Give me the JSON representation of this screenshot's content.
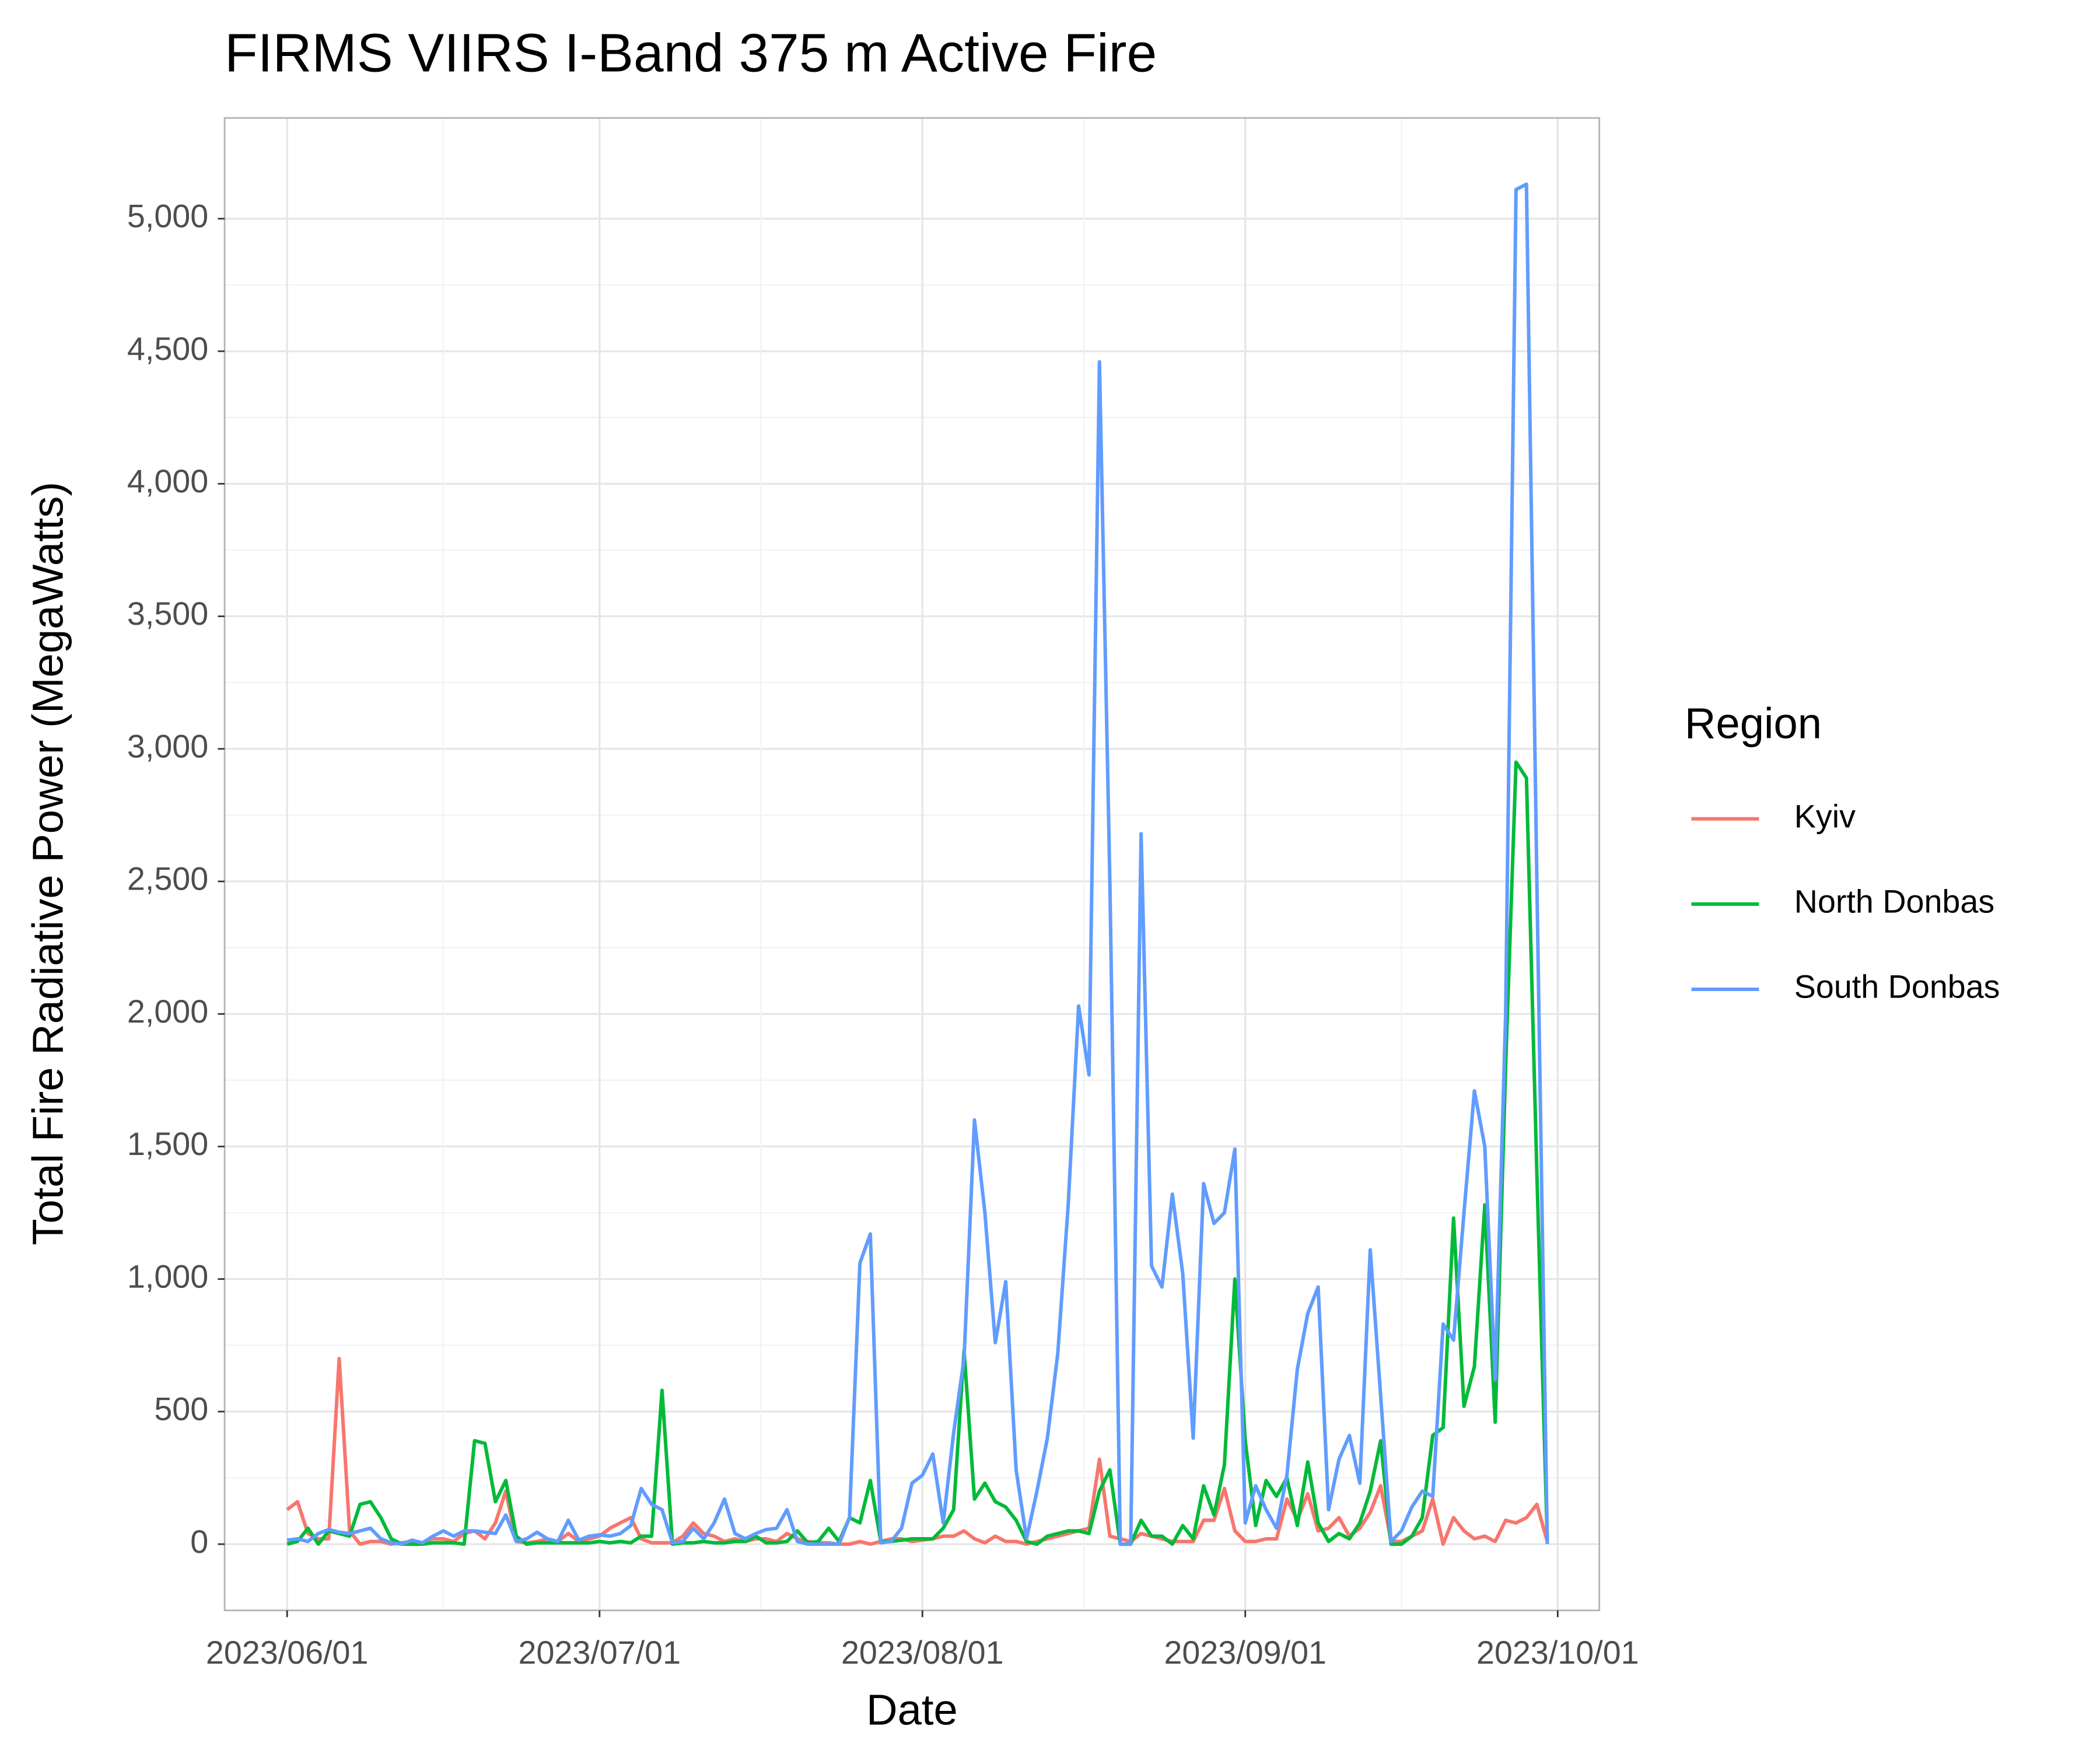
{
  "chart_data": {
    "type": "line",
    "title": "FIRMS VIIRS I-Band 375 m Active Fire",
    "x_label": "Date",
    "y_label": "Total Fire Radiative Power (MegaWatts)",
    "legend_title": "Region",
    "legend_position": "right",
    "grid": true,
    "x": [
      "2023/06/01",
      "2023/06/02",
      "2023/06/03",
      "2023/06/04",
      "2023/06/05",
      "2023/06/06",
      "2023/06/07",
      "2023/06/08",
      "2023/06/09",
      "2023/06/10",
      "2023/06/11",
      "2023/06/12",
      "2023/06/13",
      "2023/06/14",
      "2023/06/15",
      "2023/06/16",
      "2023/06/17",
      "2023/06/18",
      "2023/06/19",
      "2023/06/20",
      "2023/06/21",
      "2023/06/22",
      "2023/06/23",
      "2023/06/24",
      "2023/06/25",
      "2023/06/26",
      "2023/06/27",
      "2023/06/28",
      "2023/06/29",
      "2023/06/30",
      "2023/07/01",
      "2023/07/02",
      "2023/07/03",
      "2023/07/04",
      "2023/07/05",
      "2023/07/06",
      "2023/07/07",
      "2023/07/08",
      "2023/07/09",
      "2023/07/10",
      "2023/07/11",
      "2023/07/12",
      "2023/07/13",
      "2023/07/14",
      "2023/07/15",
      "2023/07/16",
      "2023/07/17",
      "2023/07/18",
      "2023/07/19",
      "2023/07/20",
      "2023/07/21",
      "2023/07/22",
      "2023/07/23",
      "2023/07/24",
      "2023/07/25",
      "2023/07/26",
      "2023/07/27",
      "2023/07/28",
      "2023/07/29",
      "2023/07/30",
      "2023/07/31",
      "2023/08/01",
      "2023/08/02",
      "2023/08/03",
      "2023/08/04",
      "2023/08/05",
      "2023/08/06",
      "2023/08/07",
      "2023/08/08",
      "2023/08/09",
      "2023/08/10",
      "2023/08/11",
      "2023/08/12",
      "2023/08/13",
      "2023/08/14",
      "2023/08/15",
      "2023/08/16",
      "2023/08/17",
      "2023/08/18",
      "2023/08/19",
      "2023/08/20",
      "2023/08/21",
      "2023/08/22",
      "2023/08/23",
      "2023/08/24",
      "2023/08/25",
      "2023/08/26",
      "2023/08/27",
      "2023/08/28",
      "2023/08/29",
      "2023/08/30",
      "2023/08/31",
      "2023/09/01",
      "2023/09/02",
      "2023/09/03",
      "2023/09/04",
      "2023/09/05",
      "2023/09/06",
      "2023/09/07",
      "2023/09/08",
      "2023/09/09",
      "2023/09/10",
      "2023/09/11",
      "2023/09/12",
      "2023/09/13",
      "2023/09/14",
      "2023/09/15",
      "2023/09/16",
      "2023/09/17",
      "2023/09/18",
      "2023/09/19",
      "2023/09/20",
      "2023/09/21",
      "2023/09/22",
      "2023/09/23",
      "2023/09/24",
      "2023/09/25",
      "2023/09/26",
      "2023/09/27",
      "2023/09/28",
      "2023/09/29",
      "2023/09/30"
    ],
    "series": [
      {
        "name": "Kyiv",
        "color": "#F8766D",
        "values": [
          130,
          160,
          40,
          20,
          20,
          700,
          50,
          0,
          10,
          10,
          0,
          5,
          10,
          5,
          20,
          20,
          10,
          40,
          50,
          20,
          80,
          200,
          10,
          5,
          10,
          20,
          10,
          40,
          10,
          20,
          30,
          60,
          80,
          100,
          20,
          5,
          5,
          5,
          30,
          80,
          40,
          30,
          10,
          20,
          10,
          20,
          20,
          10,
          40,
          20,
          10,
          5,
          5,
          0,
          0,
          10,
          0,
          10,
          20,
          20,
          10,
          15,
          20,
          30,
          30,
          50,
          20,
          5,
          30,
          10,
          10,
          0,
          10,
          20,
          30,
          40,
          50,
          60,
          320,
          30,
          20,
          10,
          40,
          30,
          20,
          10,
          10,
          10,
          90,
          90,
          210,
          50,
          10,
          10,
          20,
          20,
          170,
          90,
          190,
          50,
          60,
          100,
          30,
          60,
          120,
          220,
          10,
          10,
          30,
          50,
          170,
          0,
          100,
          50,
          20,
          30,
          10,
          90,
          80,
          100,
          150,
          10
        ]
      },
      {
        "name": "North Donbas",
        "color": "#00BA38",
        "values": [
          0,
          10,
          60,
          0,
          50,
          40,
          30,
          150,
          160,
          100,
          20,
          0,
          0,
          0,
          5,
          5,
          5,
          0,
          390,
          380,
          160,
          240,
          30,
          0,
          5,
          5,
          5,
          5,
          5,
          5,
          10,
          5,
          10,
          5,
          30,
          30,
          580,
          0,
          5,
          5,
          10,
          5,
          5,
          10,
          10,
          30,
          5,
          5,
          10,
          50,
          5,
          10,
          60,
          10,
          100,
          80,
          240,
          10,
          10,
          15,
          20,
          20,
          20,
          60,
          130,
          730,
          170,
          230,
          160,
          140,
          90,
          10,
          0,
          30,
          40,
          50,
          50,
          40,
          200,
          280,
          0,
          0,
          90,
          30,
          30,
          0,
          70,
          20,
          220,
          110,
          300,
          1000,
          390,
          70,
          240,
          180,
          250,
          70,
          310,
          80,
          10,
          40,
          20,
          80,
          200,
          390,
          0,
          0,
          30,
          100,
          410,
          440,
          1230,
          520,
          670,
          1280,
          460,
          1800,
          2950,
          2890,
          1400,
          10
        ]
      },
      {
        "name": "South Donbas",
        "color": "#619CFF",
        "values": [
          15,
          20,
          10,
          40,
          55,
          45,
          40,
          50,
          60,
          20,
          5,
          0,
          15,
          5,
          30,
          50,
          30,
          50,
          50,
          45,
          40,
          110,
          10,
          20,
          45,
          20,
          10,
          90,
          15,
          30,
          35,
          30,
          40,
          70,
          210,
          150,
          130,
          5,
          10,
          60,
          20,
          80,
          170,
          40,
          20,
          40,
          55,
          60,
          130,
          10,
          0,
          0,
          0,
          0,
          100,
          1060,
          1170,
          5,
          10,
          60,
          230,
          260,
          340,
          80,
          420,
          700,
          1600,
          1250,
          760,
          990,
          280,
          20,
          200,
          400,
          720,
          1280,
          2030,
          1770,
          4460,
          2500,
          0,
          0,
          2680,
          1050,
          970,
          1320,
          1020,
          400,
          1360,
          1210,
          1250,
          1490,
          80,
          220,
          130,
          60,
          260,
          660,
          870,
          970,
          130,
          320,
          410,
          230,
          1110,
          560,
          10,
          50,
          140,
          200,
          180,
          830,
          770,
          1250,
          1710,
          1500,
          620,
          2000,
          5110,
          5130,
          2500,
          0
        ]
      }
    ],
    "xlim": [
      "2023/05/26",
      "2023/10/05"
    ],
    "xticks": [
      "2023/06/01",
      "2023/07/01",
      "2023/08/01",
      "2023/09/01",
      "2023/10/01"
    ],
    "ylim": [
      -250,
      5380
    ],
    "yticks": [
      0,
      500,
      {
        "value": 1000,
        "label": "1,000"
      },
      {
        "value": 1500,
        "label": "1,500"
      },
      {
        "value": 2000,
        "label": "2,000"
      },
      {
        "value": 2500,
        "label": "2,500"
      },
      {
        "value": 3000,
        "label": "3,000"
      },
      {
        "value": 3500,
        "label": "3,500"
      },
      {
        "value": 4000,
        "label": "4,000"
      },
      {
        "value": 4500,
        "label": "4,500"
      },
      {
        "value": 5000,
        "label": "5,000"
      }
    ]
  }
}
